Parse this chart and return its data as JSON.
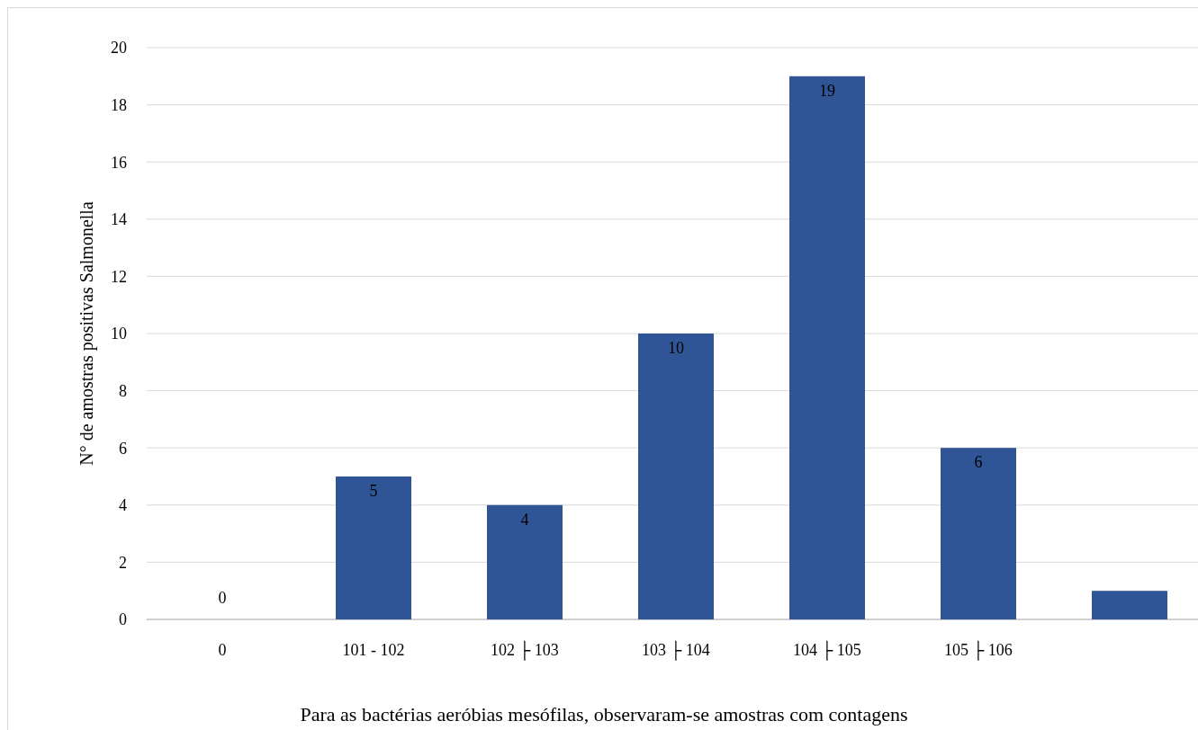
{
  "chart_data": {
    "type": "bar",
    "xlabel": "Para as bactérias aeróbias mesófilas, observaram-se amostras com contagens",
    "ylabel": "N° de amostras positivas Salmonella",
    "categories": [
      "0",
      "101 - 102",
      "102 ├ 103",
      "103 ├ 104",
      "104 ├ 105",
      "105 ├ 106",
      null
    ],
    "values": [
      0,
      5,
      4,
      10,
      19,
      6,
      1
    ],
    "value_labels": [
      "0",
      "5",
      "4",
      "10",
      "19",
      "6",
      null
    ],
    "color": "#2f5597",
    "ylim": [
      0,
      20
    ],
    "yticks": [
      0,
      2,
      4,
      6,
      8,
      10,
      12,
      14,
      16,
      18,
      20
    ],
    "grid": "y"
  }
}
